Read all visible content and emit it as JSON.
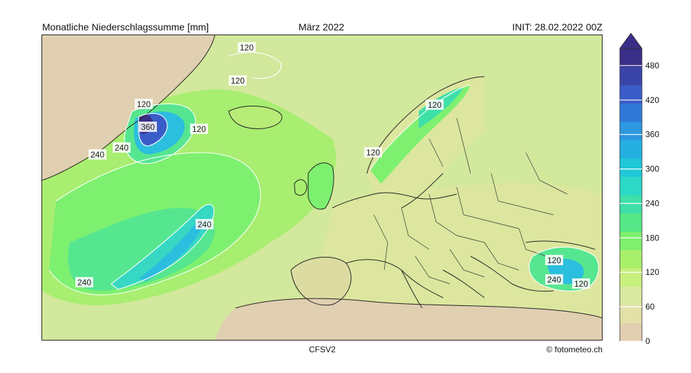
{
  "header": {
    "title": "Monatliche Niederschlagssumme [mm]",
    "period": "März 2022",
    "init": "INIT: 28.02.2022 00Z"
  },
  "footer": {
    "model": "CFSV2",
    "credit": "© fotometeo.ch"
  },
  "map": {
    "region": "North Atlantic and Europe",
    "contour_labels": [
      "120",
      "120",
      "120",
      "120",
      "360",
      "240",
      "240",
      "240",
      "240",
      "120",
      "120",
      "120",
      "240",
      "120"
    ]
  },
  "colorbar": {
    "unit": "mm",
    "min": 0,
    "max": 510,
    "ticks": [
      "480",
      "420",
      "360",
      "300",
      "240",
      "180",
      "120",
      "60",
      "0"
    ],
    "colors": [
      "#e2ceb0",
      "#e3e0a8",
      "#d9eaa0",
      "#c8f07e",
      "#a8f06a",
      "#7ef06e",
      "#56e888",
      "#3ee0a8",
      "#2cd8c6",
      "#20c8d8",
      "#24b0e0",
      "#2c98e0",
      "#3078d8",
      "#3a5cc8",
      "#3a44a8",
      "#3a2e88"
    ]
  }
}
